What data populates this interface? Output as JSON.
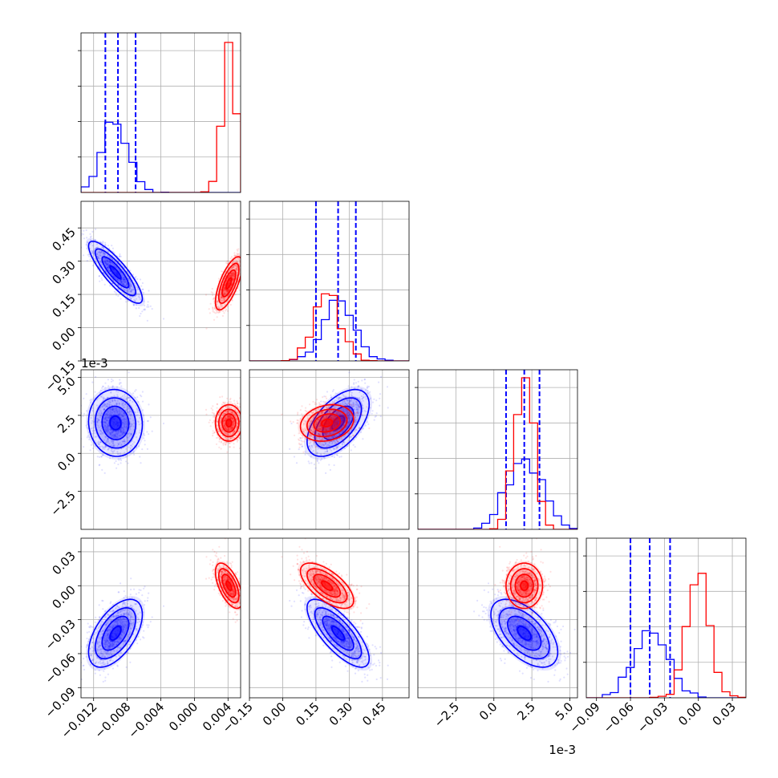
{
  "chart_data": {
    "type": "scatter",
    "subtype": "corner-plot",
    "grid": true,
    "colors": {
      "series_a": "#0000ff",
      "series_b": "#ff0000"
    },
    "parameters": [
      {
        "range": [
          -0.0135,
          0.0055
        ]
      },
      {
        "range": [
          -0.15,
          0.57
        ]
      },
      {
        "range": [
          -0.005,
          0.0055
        ],
        "offset_text": "1e-3"
      },
      {
        "range": [
          -0.099,
          0.042
        ]
      }
    ],
    "tick_labels": {
      "x": [
        [
          "−0.012",
          "−0.008",
          "−0.004",
          "0.000",
          "0.004"
        ],
        [
          "−0.15",
          "0.00",
          "0.15",
          "0.30",
          "0.45"
        ],
        [
          "−2.5",
          "0.0",
          "2.5",
          "5.0"
        ],
        [
          "−0.09",
          "−0.06",
          "−0.03",
          "0.00",
          "0.03"
        ]
      ],
      "x_offset": [
        "",
        "",
        "1e-3",
        ""
      ],
      "y": [
        [],
        [
          "−0.15",
          "0.00",
          "0.15",
          "0.30",
          "0.45"
        ],
        [
          "−2.5",
          "0.0",
          "2.5",
          "5.0"
        ],
        [
          "−0.09",
          "−0.06",
          "−0.03",
          "0.00",
          "0.03"
        ]
      ],
      "y_offset": [
        "",
        "",
        "1e-3",
        ""
      ]
    },
    "tick_values": [
      [
        -0.012,
        -0.008,
        -0.004,
        0.0,
        0.004
      ],
      [
        -0.15,
        0.0,
        0.15,
        0.3,
        0.45
      ],
      [
        -0.0025,
        0.0,
        0.0025,
        0.005
      ],
      [
        -0.09,
        -0.06,
        -0.03,
        0.0,
        0.03
      ]
    ],
    "series": [
      {
        "color": "#0000ff",
        "means": [
          -0.0094,
          0.25,
          0.002,
          -0.042
        ],
        "sds": [
          0.0016,
          0.07,
          0.0011,
          0.015
        ],
        "corr": [
          [
            1,
            -0.85,
            -0.05,
            0.55
          ],
          [
            -0.85,
            1,
            0.55,
            -0.75
          ],
          [
            -0.05,
            0.55,
            1,
            -0.55
          ],
          [
            0.55,
            -0.75,
            -0.55,
            1
          ]
        ],
        "quantiles": [
          [
            -0.0106,
            -0.0091,
            -0.007
          ],
          [
            0.15,
            0.25,
            0.33
          ],
          [
            0.0008,
            0.002,
            0.003
          ],
          [
            -0.06,
            -0.043,
            -0.025
          ]
        ],
        "hist_peak": [
          0.44,
          0.38,
          0.44,
          0.42
        ]
      },
      {
        "color": "#ff0000",
        "means": [
          0.0041,
          0.2,
          0.002,
          0.0
        ],
        "sds": [
          0.0008,
          0.06,
          0.0006,
          0.01
        ],
        "corr": [
          [
            1,
            0.7,
            0.0,
            -0.6
          ],
          [
            0.7,
            1,
            0.2,
            -0.65
          ],
          [
            0.0,
            0.2,
            1,
            0.0
          ],
          [
            -0.6,
            -0.65,
            0.0,
            1
          ]
        ],
        "hist_peak": [
          0.94,
          0.42,
          0.95,
          0.78
        ]
      }
    ]
  }
}
